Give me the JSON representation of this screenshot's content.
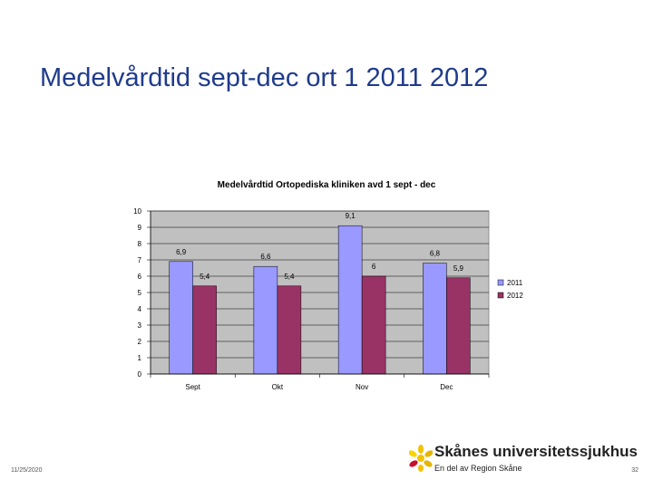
{
  "slide": {
    "title": "Medelvårdtid sept-dec ort 1 2011 2012",
    "date": "11/25/2020",
    "page_number": "32"
  },
  "logo": {
    "name": "Skånes universitetssjukhus",
    "tagline": "En del av Region Skåne",
    "icon": "sun-flower-logo-icon"
  },
  "chart_data": {
    "type": "bar",
    "title": "Medelvårdtid Ortopediska kliniken avd 1 sept - dec",
    "categories": [
      "Sept",
      "Okt",
      "Nov",
      "Dec"
    ],
    "series": [
      {
        "name": "2011",
        "values": [
          6.9,
          6.6,
          9.1,
          6.8
        ],
        "labels": [
          "6,9",
          "6,6",
          "9,1",
          "6,8"
        ],
        "color": "#9999ff"
      },
      {
        "name": "2012",
        "values": [
          5.4,
          5.4,
          6,
          5.9
        ],
        "labels": [
          "5,4",
          "5,4",
          "6",
          "5,9"
        ],
        "color": "#993366"
      }
    ],
    "ylim": [
      0,
      10
    ],
    "yticks": [
      0,
      1,
      2,
      3,
      4,
      5,
      6,
      7,
      8,
      9,
      10
    ],
    "xlabel": "",
    "ylabel": "",
    "grid": true,
    "plot_background": "#c0c0c0",
    "legend": "right"
  }
}
